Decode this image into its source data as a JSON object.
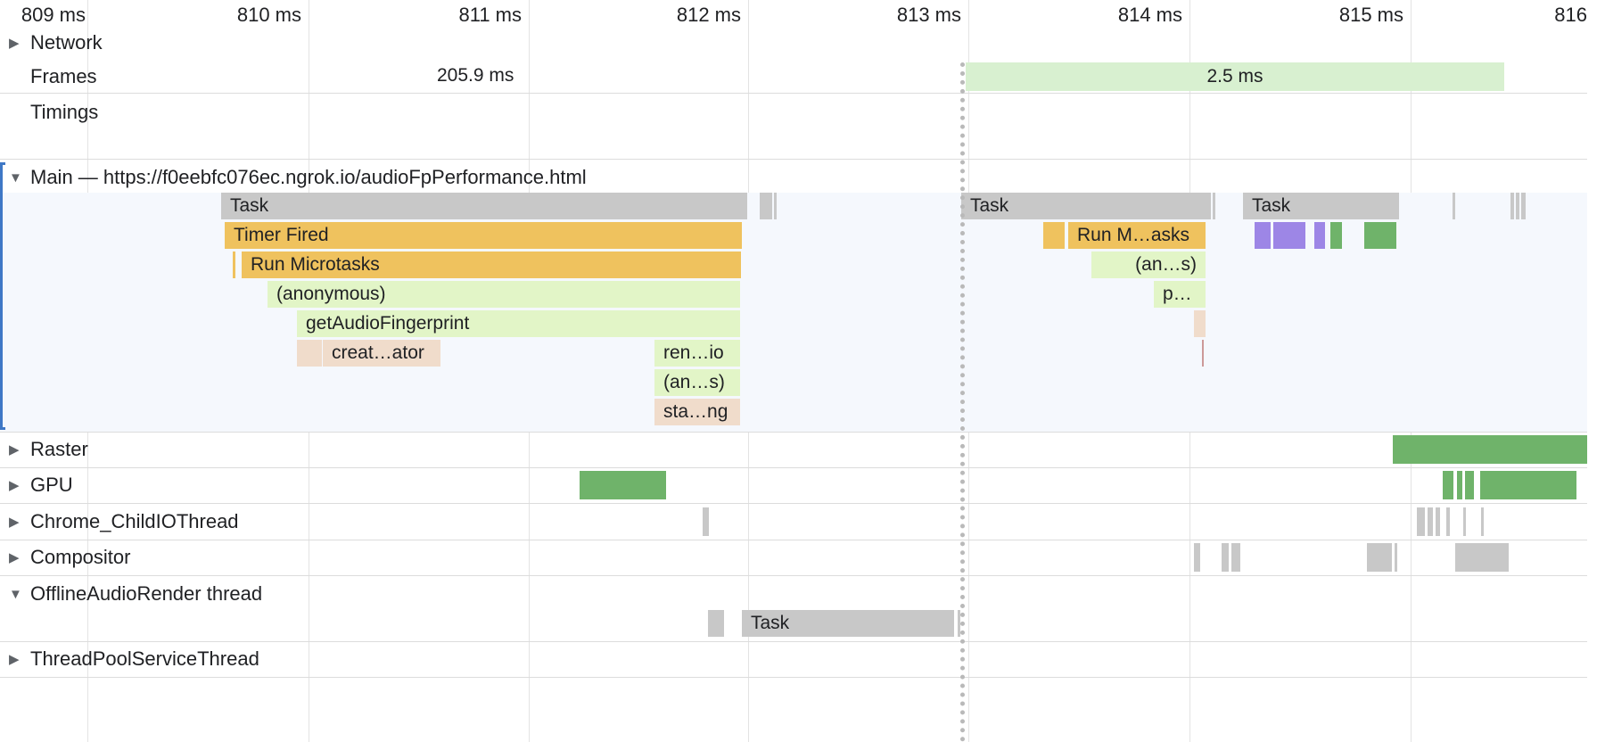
{
  "colors": {
    "task_gray": "#c8c8c8",
    "timer_orange": "#efc25e",
    "script_green": "#e2f5c7",
    "gc_peach": "#f0dccb",
    "raster_green": "#6fb36a",
    "frame_green": "#d8f0d0",
    "purple": "#9d86e6",
    "main_accent": "#3f78c6"
  },
  "ruler": {
    "ticks": [
      "809 ms",
      "810 ms",
      "811 ms",
      "812 ms",
      "813 ms",
      "814 ms",
      "815 ms",
      "816"
    ]
  },
  "frames": {
    "left_frame_label": "205.9 ms",
    "right_frame_label": "2.5 ms"
  },
  "tracks": {
    "network": {
      "label": "Network",
      "expanded": false
    },
    "frames": {
      "label": "Frames"
    },
    "timings": {
      "label": "Timings"
    },
    "main": {
      "label": "Main — https://f0eebfc076ec.ngrok.io/audioFpPerformance.html",
      "expanded": true
    },
    "raster": {
      "label": "Raster",
      "expanded": false
    },
    "gpu": {
      "label": "GPU",
      "expanded": false
    },
    "child_io": {
      "label": "Chrome_ChildIOThread",
      "expanded": false
    },
    "compositor": {
      "label": "Compositor",
      "expanded": false
    },
    "offline_audio": {
      "label": "OfflineAudioRender thread",
      "expanded": true
    },
    "thread_pool": {
      "label": "ThreadPoolServiceThread",
      "expanded": false
    }
  },
  "main_flame": {
    "task_1": "Task",
    "timer_fired": "Timer Fired",
    "run_microtasks": "Run Microtasks",
    "anonymous": "(anonymous)",
    "get_audio_fp": "getAudioFingerprint",
    "create_oscillator": "creat…ator",
    "render_audio": "ren…io",
    "anonymous_short": "(an…s)",
    "start_rendering": "sta…ng",
    "task_2": "Task",
    "run_microtasks_short": "Run M…asks",
    "anonymous_short_2": "(an…s)",
    "p_short": "p…",
    "task_3": "Task"
  },
  "offline_audio": {
    "task": "Task"
  },
  "icons": {
    "collapsed": "triangle-right-icon",
    "expanded": "triangle-down-icon"
  }
}
